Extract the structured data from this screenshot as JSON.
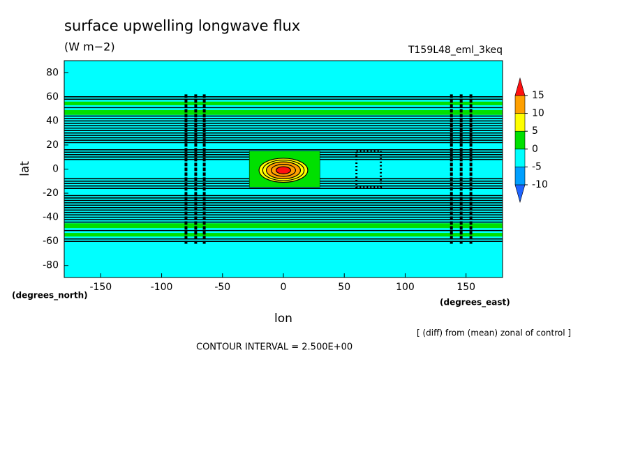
{
  "chart_data": {
    "type": "contour",
    "title": "surface upwelling longwave flux",
    "subtitle": "(W m−2)",
    "run_label": "T159L48_eml_3keq",
    "xlabel": "lon",
    "ylabel": "lat",
    "x_units": "(degrees_east)",
    "y_units": "(degrees_north)",
    "note": "[ (diff) from (mean) zonal of control ]",
    "contour_interval": "CONTOUR INTERVAL = 2.500E+00",
    "xlim": [
      -180,
      180
    ],
    "ylim": [
      -90,
      90
    ],
    "xticks": [
      -150,
      -100,
      -50,
      0,
      50,
      100,
      150
    ],
    "yticks": [
      -80,
      -60,
      -40,
      -20,
      0,
      20,
      40,
      60,
      80
    ],
    "levels": [
      -10,
      -5,
      0,
      5,
      10,
      15
    ],
    "level_colors": [
      "#1e64ff",
      "#00a0ff",
      "#00ffff",
      "#00e000",
      "#ffff00",
      "#ffa000",
      "#ff1010"
    ],
    "background": -2.5,
    "bands": [
      {
        "lat": [
          45,
          49
        ],
        "value": 2.5
      },
      {
        "lat": [
          53,
          56
        ],
        "value": 2.5
      },
      {
        "lat": [
          -49,
          -45
        ],
        "value": 2.5
      },
      {
        "lat": [
          -56,
          -53
        ],
        "value": 2.5
      }
    ],
    "contour_lats": [
      60,
      58,
      51,
      44,
      42,
      40,
      38,
      36,
      34,
      32,
      30,
      28,
      26,
      24,
      22,
      16,
      14,
      12,
      10,
      8,
      -8,
      -10,
      -12,
      -14,
      -16,
      -22,
      -24,
      -26,
      -28,
      -30,
      -32,
      -34,
      -36,
      -38,
      -40,
      -42,
      -44,
      -51,
      -58,
      -60
    ],
    "box": {
      "lon": [
        -28,
        30
      ],
      "lat": [
        -15,
        15
      ],
      "value": 2.5
    },
    "peak": {
      "lon": 0,
      "lat": -1,
      "rings": [
        {
          "value": 5,
          "rx": 20,
          "ry": 10
        },
        {
          "value": 7.5,
          "rx": 17,
          "ry": 8.5
        },
        {
          "value": 10,
          "rx": 14,
          "ry": 7
        },
        {
          "value": 12.5,
          "rx": 10,
          "ry": 5
        },
        {
          "value": 15,
          "rx": 6,
          "ry": 3
        }
      ]
    },
    "column_lons": [
      -80,
      -72,
      -65,
      138,
      146,
      154
    ],
    "column_lat": [
      -62,
      62
    ],
    "dotted_box": {
      "lon": [
        60,
        80
      ],
      "lat": [
        -15,
        15
      ]
    }
  }
}
